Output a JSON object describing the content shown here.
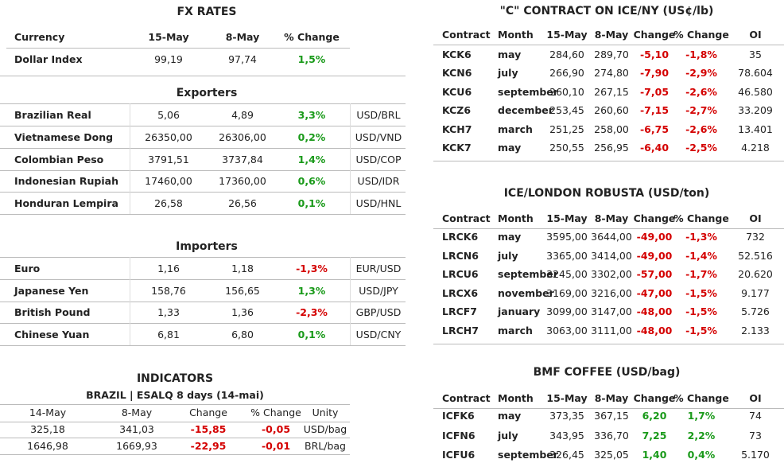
{
  "fx": {
    "title": "FX RATES",
    "header": [
      "Currency",
      "15-May",
      "8-May",
      "% Change"
    ],
    "rows": [
      [
        "Dollar Index",
        "99,19",
        "97,74",
        "1,5%"
      ]
    ]
  },
  "exporters": {
    "title": "Exporters",
    "rows": [
      [
        "Brazilian Real",
        "5,06",
        "4,89",
        "3,3%",
        "USD/BRL"
      ],
      [
        "Vietnamese Dong",
        "26350,00",
        "26306,00",
        "0,2%",
        "USD/VND"
      ],
      [
        "Colombian Peso",
        "3791,51",
        "3737,84",
        "1,4%",
        "USD/COP"
      ],
      [
        "Indonesian Rupiah",
        "17460,00",
        "17360,00",
        "0,6%",
        "USD/IDR"
      ],
      [
        "Honduran Lempira",
        "26,58",
        "26,56",
        "0,1%",
        "USD/HNL"
      ]
    ]
  },
  "importers": {
    "title": "Importers",
    "rows": [
      [
        "Euro",
        "1,16",
        "1,18",
        "-1,3%",
        "EUR/USD"
      ],
      [
        "Japanese Yen",
        "158,76",
        "156,65",
        "1,3%",
        "USD/JPY"
      ],
      [
        "British Pound",
        "1,33",
        "1,36",
        "-2,3%",
        "GBP/USD"
      ],
      [
        "Chinese Yuan",
        "6,81",
        "6,80",
        "0,1%",
        "USD/CNY"
      ]
    ]
  },
  "indicators": {
    "title": "INDICATORS",
    "subtitle": "BRAZIL | ESALQ 8 days (14-mai)",
    "header": [
      "14-May",
      "8-May",
      "Change",
      "% Change",
      "Unity"
    ],
    "rows": [
      [
        "325,18",
        "341,03",
        "-15,85",
        "-0,05",
        "USD/bag"
      ],
      [
        "1646,98",
        "1669,93",
        "-22,95",
        "-0,01",
        "BRL/bag"
      ]
    ]
  },
  "ny": {
    "title": "\"C\" CONTRACT ON ICE/NY (US¢/lb)",
    "header": [
      "Contract",
      "Month",
      "15-May",
      "8-May",
      "Change",
      "% Change",
      "OI"
    ],
    "rows": [
      [
        "KCK6",
        "may",
        "284,60",
        "289,70",
        "-5,10",
        "-1,8%",
        "35"
      ],
      [
        "KCN6",
        "july",
        "266,90",
        "274,80",
        "-7,90",
        "-2,9%",
        "78.604"
      ],
      [
        "KCU6",
        "september",
        "260,10",
        "267,15",
        "-7,05",
        "-2,6%",
        "46.580"
      ],
      [
        "KCZ6",
        "december",
        "253,45",
        "260,60",
        "-7,15",
        "-2,7%",
        "33.209"
      ],
      [
        "KCH7",
        "march",
        "251,25",
        "258,00",
        "-6,75",
        "-2,6%",
        "13.401"
      ],
      [
        "KCK7",
        "may",
        "250,55",
        "256,95",
        "-6,40",
        "-2,5%",
        "4.218"
      ]
    ]
  },
  "london": {
    "title": "ICE/LONDON ROBUSTA (USD/ton)",
    "header": [
      "Contract",
      "Month",
      "15-May",
      "8-May",
      "Change",
      "% Change",
      "OI"
    ],
    "rows": [
      [
        "LRCK6",
        "may",
        "3595,00",
        "3644,00",
        "-49,00",
        "-1,3%",
        "732"
      ],
      [
        "LRCN6",
        "july",
        "3365,00",
        "3414,00",
        "-49,00",
        "-1,4%",
        "52.516"
      ],
      [
        "LRCU6",
        "september",
        "3245,00",
        "3302,00",
        "-57,00",
        "-1,7%",
        "20.620"
      ],
      [
        "LRCX6",
        "november",
        "3169,00",
        "3216,00",
        "-47,00",
        "-1,5%",
        "9.177"
      ],
      [
        "LRCF7",
        "january",
        "3099,00",
        "3147,00",
        "-48,00",
        "-1,5%",
        "5.726"
      ],
      [
        "LRCH7",
        "march",
        "3063,00",
        "3111,00",
        "-48,00",
        "-1,5%",
        "2.133"
      ]
    ]
  },
  "bmf": {
    "title": "BMF COFFEE (USD/bag)",
    "header": [
      "Contract",
      "Month",
      "15-May",
      "8-May",
      "Change",
      "% Change",
      "OI"
    ],
    "rows": [
      [
        "ICFK6",
        "may",
        "373,35",
        "367,15",
        "6,20",
        "1,7%",
        "74"
      ],
      [
        "ICFN6",
        "july",
        "343,95",
        "336,70",
        "7,25",
        "2,2%",
        "73"
      ],
      [
        "ICFU6",
        "september",
        "326,45",
        "325,05",
        "1,40",
        "0,4%",
        "5.170"
      ]
    ]
  }
}
